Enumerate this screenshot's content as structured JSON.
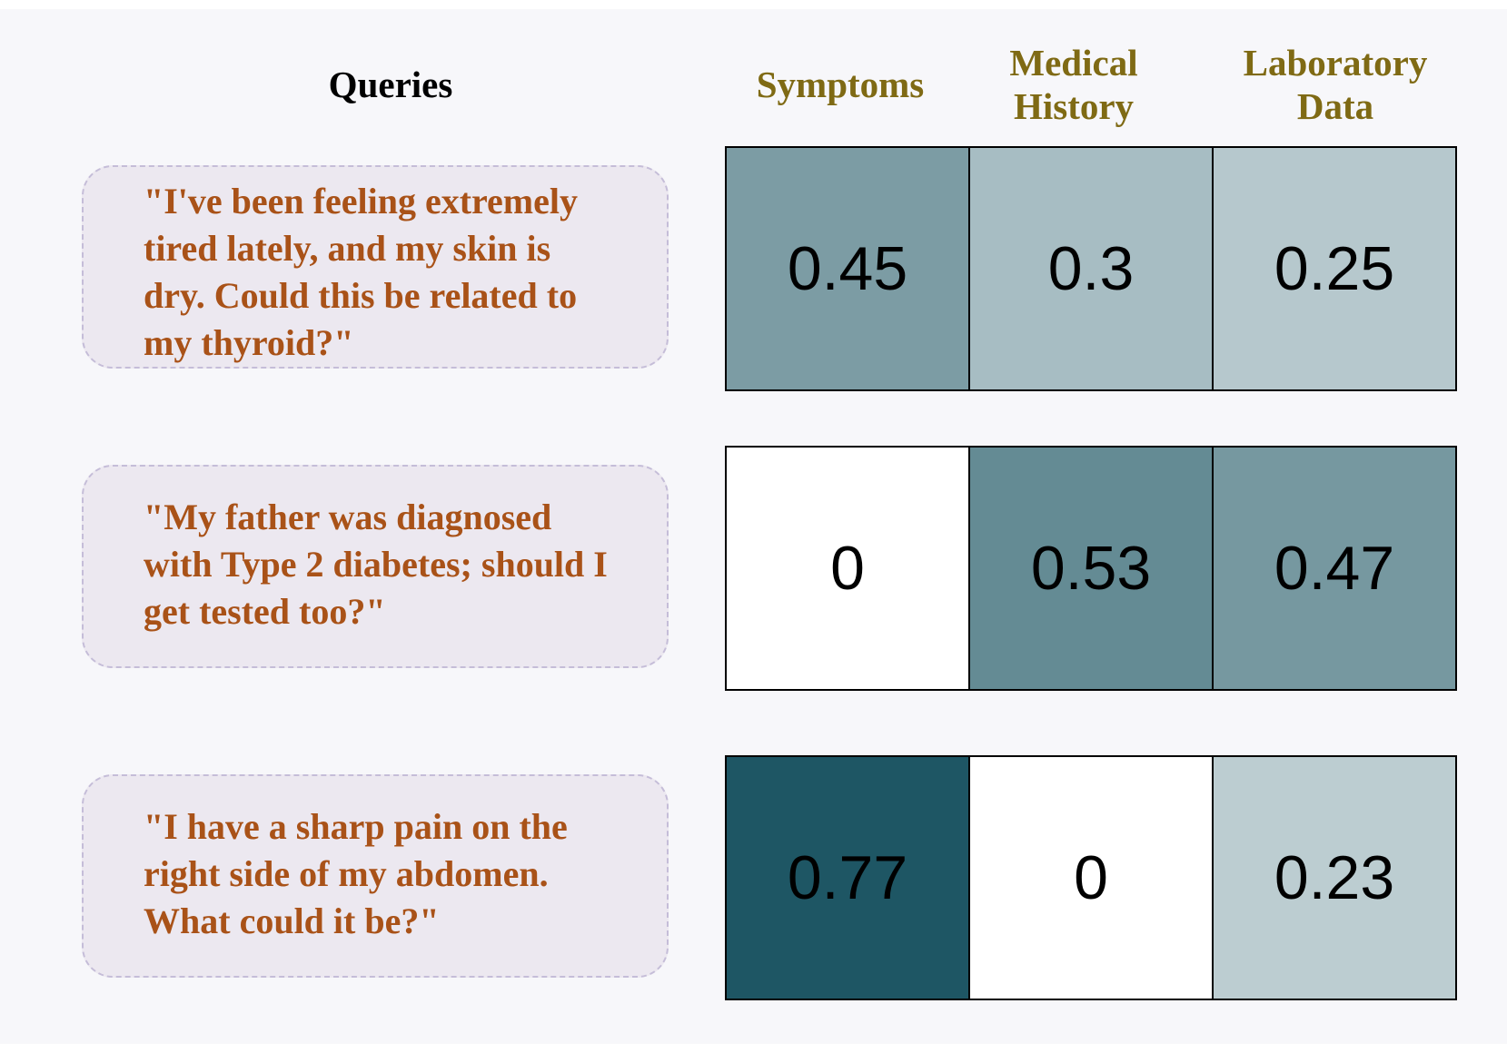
{
  "chart_data": {
    "type": "heatmap",
    "row_header": "Queries",
    "columns": [
      "Symptoms",
      "Medical History",
      "Laboratory Data"
    ],
    "column_header_lines": [
      [
        "Symptoms"
      ],
      [
        "Medical",
        "History"
      ],
      [
        "Laboratory",
        "Data"
      ]
    ],
    "rows": [
      "\"I've been feeling extremely tired lately, and my skin is dry. Could this be related to my thyroid?\"",
      "\"My father was diagnosed with Type 2 diabetes; should I get tested too?\"",
      "\"I have a sharp pain on the right side of my abdomen. What could it be?\""
    ],
    "row_lines": [
      [
        "\"I've been feeling extremely",
        "tired lately, and my skin is",
        "dry. Could this be related to",
        "my thyroid?\""
      ],
      [
        "\"My father was diagnosed",
        "with Type 2 diabetes; should I",
        "get tested too?\""
      ],
      [
        "\"I have a sharp pain on the",
        "right side of my abdomen.",
        "What could it be?\""
      ]
    ],
    "values": [
      [
        0.45,
        0.3,
        0.25
      ],
      [
        0,
        0.53,
        0.47
      ],
      [
        0.77,
        0,
        0.23
      ]
    ],
    "value_labels": [
      [
        "0.45",
        "0.3",
        "0.25"
      ],
      [
        "0",
        "0.53",
        "0.47"
      ],
      [
        "0.77",
        "0",
        "0.23"
      ]
    ],
    "colormap": {
      "low": "#ffffff",
      "high": "#1e5664"
    },
    "colors": {
      "header_text": "#000000",
      "category_text": "#7f6a14",
      "query_text": "#a95218",
      "query_box_fill": "#ece8f0",
      "query_box_border": "#c5bdd8",
      "cell_border": "#000000",
      "background": "#f7f7fa"
    }
  }
}
